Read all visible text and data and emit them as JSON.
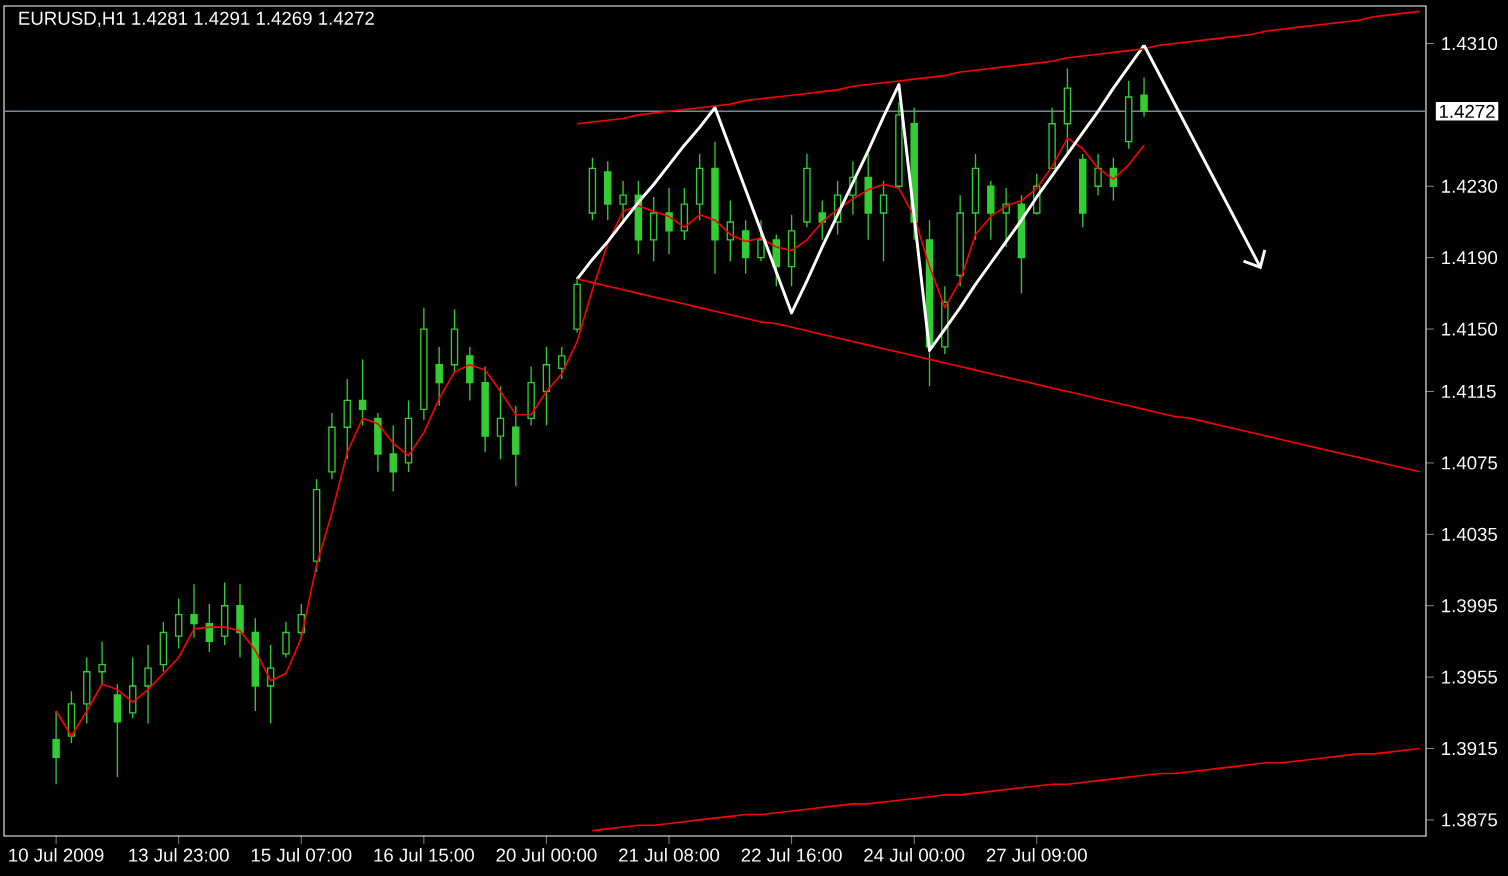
{
  "chart_data": {
    "type": "candlestick",
    "title": "EURUSD,H1  1.4281 1.4291 1.4269 1.4272",
    "color": "#32cd32",
    "categories": [
      "10 Jul 2009",
      null,
      null,
      null,
      null,
      null,
      null,
      null,
      "13 Jul 23:00",
      null,
      null,
      null,
      null,
      null,
      null,
      null,
      "15 Jul 07:00",
      null,
      null,
      null,
      null,
      null,
      null,
      null,
      "16 Jul 15:00",
      null,
      null,
      null,
      null,
      null,
      null,
      null,
      "20 Jul 00:00",
      null,
      null,
      null,
      null,
      null,
      null,
      null,
      "21 Jul 08:00",
      null,
      null,
      null,
      null,
      null,
      null,
      null,
      "22 Jul 16:00",
      null,
      null,
      null,
      null,
      null,
      null,
      null,
      "24 Jul 00:00",
      null,
      null,
      null,
      null,
      null,
      null,
      null,
      "27 Jul 09:00",
      null,
      null,
      null,
      null,
      null,
      null,
      null,
      null,
      null,
      null,
      null,
      null,
      null,
      null,
      null,
      null,
      null,
      null,
      null,
      null,
      null,
      null,
      null,
      null,
      null
    ],
    "ohlc": [
      [
        1.392,
        1.3936,
        1.3895,
        1.391
      ],
      [
        1.3922,
        1.3947,
        1.3918,
        1.394
      ],
      [
        1.394,
        1.3966,
        1.3929,
        1.3958
      ],
      [
        1.3958,
        1.3975,
        1.3951,
        1.3962
      ],
      [
        1.3945,
        1.3951,
        1.3899,
        1.393
      ],
      [
        1.3935,
        1.3966,
        1.3932,
        1.395
      ],
      [
        1.395,
        1.3973,
        1.3929,
        1.396
      ],
      [
        1.3962,
        1.3986,
        1.3958,
        1.398
      ],
      [
        1.3978,
        1.3999,
        1.3971,
        1.399
      ],
      [
        1.399,
        1.4007,
        1.3977,
        1.3985
      ],
      [
        1.3985,
        1.3996,
        1.3969,
        1.3975
      ],
      [
        1.3978,
        1.4008,
        1.3973,
        1.3995
      ],
      [
        1.3995,
        1.4007,
        1.3966,
        1.398
      ],
      [
        1.398,
        1.3988,
        1.3936,
        1.395
      ],
      [
        1.395,
        1.3973,
        1.3929,
        1.396
      ],
      [
        1.3968,
        1.3986,
        1.3966,
        1.398
      ],
      [
        1.398,
        1.3996,
        1.3977,
        1.399
      ],
      [
        1.402,
        1.4066,
        1.4014,
        1.406
      ],
      [
        1.407,
        1.4103,
        1.4066,
        1.4095
      ],
      [
        1.4095,
        1.4122,
        1.4077,
        1.411
      ],
      [
        1.411,
        1.4133,
        1.4096,
        1.4105
      ],
      [
        1.41,
        1.4103,
        1.407,
        1.408
      ],
      [
        1.408,
        1.4096,
        1.4059,
        1.407
      ],
      [
        1.4075,
        1.411,
        1.407,
        1.41
      ],
      [
        1.4105,
        1.4162,
        1.4099,
        1.415
      ],
      [
        1.413,
        1.414,
        1.4107,
        1.412
      ],
      [
        1.413,
        1.4161,
        1.4125,
        1.415
      ],
      [
        1.4135,
        1.414,
        1.411,
        1.412
      ],
      [
        1.412,
        1.4129,
        1.4081,
        1.409
      ],
      [
        1.409,
        1.4118,
        1.4077,
        1.41
      ],
      [
        1.4095,
        1.4107,
        1.4062,
        1.408
      ],
      [
        1.41,
        1.4129,
        1.4096,
        1.412
      ],
      [
        1.4115,
        1.414,
        1.4096,
        1.413
      ],
      [
        1.4128,
        1.414,
        1.4122,
        1.4135
      ],
      [
        1.415,
        1.4179,
        1.4148,
        1.4175
      ],
      [
        1.4215,
        1.4246,
        1.4211,
        1.424
      ],
      [
        1.4238,
        1.4244,
        1.4211,
        1.422
      ],
      [
        1.422,
        1.4233,
        1.4211,
        1.4225
      ],
      [
        1.4225,
        1.4233,
        1.4192,
        1.42
      ],
      [
        1.42,
        1.4224,
        1.4188,
        1.4215
      ],
      [
        1.4215,
        1.4229,
        1.4192,
        1.4205
      ],
      [
        1.4205,
        1.4229,
        1.42,
        1.422
      ],
      [
        1.422,
        1.4248,
        1.4211,
        1.424
      ],
      [
        1.424,
        1.4255,
        1.4181,
        1.42
      ],
      [
        1.42,
        1.4222,
        1.4188,
        1.421
      ],
      [
        1.4205,
        1.4211,
        1.4181,
        1.419
      ],
      [
        1.419,
        1.4211,
        1.4188,
        1.42
      ],
      [
        1.42,
        1.4203,
        1.4174,
        1.4185
      ],
      [
        1.4185,
        1.4214,
        1.4174,
        1.4205
      ],
      [
        1.421,
        1.4248,
        1.4207,
        1.424
      ],
      [
        1.4215,
        1.4222,
        1.42,
        1.421
      ],
      [
        1.421,
        1.4233,
        1.4203,
        1.4225
      ],
      [
        1.4225,
        1.4244,
        1.4214,
        1.4235
      ],
      [
        1.4235,
        1.4248,
        1.42,
        1.4215
      ],
      [
        1.4215,
        1.4233,
        1.4188,
        1.4225
      ],
      [
        1.423,
        1.4277,
        1.4229,
        1.427
      ],
      [
        1.4265,
        1.4274,
        1.42,
        1.421
      ],
      [
        1.42,
        1.4211,
        1.4118,
        1.414
      ],
      [
        1.414,
        1.4174,
        1.4136,
        1.4165
      ],
      [
        1.418,
        1.4225,
        1.4174,
        1.4215
      ],
      [
        1.4215,
        1.4248,
        1.42,
        1.424
      ],
      [
        1.423,
        1.4233,
        1.42,
        1.4215
      ],
      [
        1.4215,
        1.4229,
        1.4196,
        1.422
      ],
      [
        1.422,
        1.4225,
        1.417,
        1.419
      ],
      [
        1.4215,
        1.4237,
        1.4214,
        1.423
      ],
      [
        1.424,
        1.4274,
        1.424,
        1.4265
      ],
      [
        1.4265,
        1.4296,
        1.4248,
        1.4285
      ],
      [
        1.4245,
        1.4248,
        1.4207,
        1.4215
      ],
      [
        1.423,
        1.4248,
        1.4225,
        1.424
      ],
      [
        1.424,
        1.4246,
        1.4222,
        1.423
      ],
      [
        1.4255,
        1.4289,
        1.4251,
        1.428
      ],
      [
        1.4281,
        1.4291,
        1.4269,
        1.4272
      ],
      null,
      null,
      null,
      null,
      null,
      null,
      null,
      null,
      null,
      null,
      null,
      null,
      null,
      null,
      null,
      null,
      null,
      null
    ],
    "series": [
      {
        "type": "line",
        "color": "#ff0000",
        "values": [
          1.3936,
          1.3922,
          1.3936,
          1.3951,
          1.3948,
          1.3941,
          1.3948,
          1.3957,
          1.3966,
          1.3982,
          1.3983,
          1.3983,
          1.3981,
          1.397,
          1.3953,
          1.3957,
          1.3977,
          1.4018,
          1.4047,
          1.4081,
          1.41,
          1.4097,
          1.4086,
          1.4079,
          1.4092,
          1.4111,
          1.4126,
          1.413,
          1.4127,
          1.4115,
          1.4102,
          1.4102,
          1.4115,
          1.4125,
          1.4143,
          1.4172,
          1.4198,
          1.4216,
          1.4219,
          1.4216,
          1.4213,
          1.4207,
          1.4214,
          1.4211,
          1.4203,
          1.4199,
          1.4201,
          1.4196,
          1.4194,
          1.42,
          1.421,
          1.4217,
          1.4223,
          1.4228,
          1.4231,
          1.4229,
          1.4213,
          1.4185,
          1.4162,
          1.4177,
          1.4203,
          1.4213,
          1.4219,
          1.4222,
          1.4229,
          1.4241,
          1.4257,
          1.4251,
          1.424,
          1.4234,
          1.4242,
          1.4253,
          null,
          null,
          null,
          null,
          null,
          null,
          null,
          null,
          null,
          null,
          null,
          null,
          null,
          null,
          null,
          null,
          null,
          null
        ]
      },
      {
        "type": "line",
        "color": "#ffffff",
        "values": [
          null,
          null,
          null,
          null,
          null,
          null,
          null,
          null,
          null,
          null,
          null,
          null,
          null,
          null,
          null,
          null,
          null,
          null,
          null,
          null,
          null,
          null,
          null,
          null,
          null,
          null,
          null,
          null,
          null,
          null,
          null,
          null,
          null,
          null,
          1.4178,
          1.4189,
          1.4199,
          1.421,
          1.4221,
          1.4231,
          1.4242,
          1.4253,
          1.4263,
          1.4274,
          1.4251,
          1.4228,
          1.4205,
          1.4182,
          1.4159,
          1.4177,
          1.4196,
          1.4214,
          1.4232,
          1.425,
          1.4269,
          1.4287,
          1.4213,
          1.4138,
          1.415,
          1.4162,
          1.4175,
          1.4187,
          1.4199,
          1.4211,
          1.4224,
          1.4236,
          1.4248,
          1.426,
          1.4272,
          1.4285,
          1.4297,
          1.4309,
          null,
          null,
          null,
          null,
          null,
          null,
          null,
          null,
          null,
          null,
          null,
          null,
          null,
          null,
          null,
          null,
          null,
          null
        ]
      },
      {
        "type": "line",
        "color": "#ff0000",
        "values": [
          null,
          null,
          null,
          null,
          null,
          null,
          null,
          null,
          null,
          null,
          null,
          null,
          null,
          null,
          null,
          null,
          null,
          null,
          null,
          null,
          null,
          null,
          null,
          null,
          null,
          null,
          null,
          null,
          null,
          null,
          null,
          null,
          null,
          null,
          1.4265,
          1.4266,
          1.4267,
          1.4268,
          1.427,
          1.4271,
          1.4272,
          1.4273,
          1.4274,
          1.4275,
          1.4276,
          1.4278,
          1.4279,
          1.428,
          1.4281,
          1.4282,
          1.4283,
          1.4284,
          1.4286,
          1.4287,
          1.4288,
          1.4289,
          1.429,
          1.4291,
          1.4292,
          1.4294,
          1.4295,
          1.4296,
          1.4297,
          1.4298,
          1.4299,
          1.43,
          1.4302,
          1.4303,
          1.4304,
          1.4305,
          1.4306,
          1.4307,
          1.4309,
          1.431,
          1.4311,
          1.4312,
          1.4313,
          1.4314,
          1.4315,
          1.4317,
          1.4318,
          1.4319,
          1.432,
          1.4321,
          1.4322,
          1.4323,
          1.4325,
          1.4326,
          1.4327,
          1.4328
        ]
      },
      {
        "type": "line",
        "color": "#ff0000",
        "values": [
          null,
          null,
          null,
          null,
          null,
          null,
          null,
          null,
          null,
          null,
          null,
          null,
          null,
          null,
          null,
          null,
          null,
          null,
          null,
          null,
          null,
          null,
          null,
          null,
          null,
          null,
          null,
          null,
          null,
          null,
          null,
          null,
          null,
          null,
          1.4178,
          1.4176,
          1.4174,
          1.4172,
          1.417,
          1.4168,
          1.4166,
          1.4164,
          1.4162,
          1.416,
          1.4158,
          1.4156,
          1.4154,
          1.4153,
          1.4151,
          1.4149,
          1.4147,
          1.4145,
          1.4143,
          1.4141,
          1.4139,
          1.4137,
          1.4135,
          1.4133,
          1.4131,
          1.4129,
          1.4127,
          1.4125,
          1.4123,
          1.4121,
          1.4119,
          1.4117,
          1.4115,
          1.4113,
          1.4111,
          1.4109,
          1.4107,
          1.4105,
          1.4103,
          1.4101,
          1.41,
          1.4098,
          1.4096,
          1.4094,
          1.4092,
          1.409,
          1.4088,
          1.4086,
          1.4084,
          1.4082,
          1.408,
          1.4078,
          1.4076,
          1.4074,
          1.4072,
          1.407
        ]
      },
      {
        "type": "line",
        "color": "#ff0000",
        "values": [
          null,
          null,
          null,
          null,
          null,
          null,
          null,
          null,
          null,
          null,
          null,
          null,
          null,
          null,
          null,
          null,
          null,
          null,
          null,
          null,
          null,
          null,
          null,
          null,
          null,
          null,
          null,
          null,
          null,
          null,
          null,
          null,
          null,
          null,
          null,
          1.3869,
          1.387,
          1.3871,
          1.3872,
          1.3872,
          1.3873,
          1.3874,
          1.3875,
          1.3876,
          1.3877,
          1.3878,
          1.3878,
          1.3879,
          1.388,
          1.3881,
          1.3882,
          1.3883,
          1.3884,
          1.3884,
          1.3885,
          1.3886,
          1.3887,
          1.3888,
          1.3889,
          1.3889,
          1.389,
          1.3891,
          1.3892,
          1.3893,
          1.3894,
          1.3895,
          1.3895,
          1.3896,
          1.3897,
          1.3898,
          1.3899,
          1.39,
          1.3901,
          1.3901,
          1.3902,
          1.3903,
          1.3904,
          1.3905,
          1.3906,
          1.3907,
          1.3907,
          1.3908,
          1.3909,
          1.391,
          1.3911,
          1.3912,
          1.3912,
          1.3913,
          1.3914,
          1.3915
        ]
      }
    ],
    "ylim": [
      1.3866,
      1.4331
    ],
    "yticks": [
      {
        "value": 1.431,
        "label": "1.4310"
      },
      {
        "value": 1.423,
        "label": "1.4230"
      },
      {
        "value": 1.419,
        "label": "1.4190"
      },
      {
        "value": 1.415,
        "label": "1.4150"
      },
      {
        "value": 1.4115,
        "label": "1.4115"
      },
      {
        "value": 1.4075,
        "label": "1.4075"
      },
      {
        "value": 1.4035,
        "label": "1.4035"
      },
      {
        "value": 1.3995,
        "label": "1.3995"
      },
      {
        "value": 1.3955,
        "label": "1.3955"
      },
      {
        "value": 1.3915,
        "label": "1.3915"
      },
      {
        "value": 1.3875,
        "label": "1.3875"
      }
    ],
    "ref_lines": [
      {
        "axis": "y",
        "value": 1.4272,
        "label": "1.4272",
        "color": "#778899"
      }
    ]
  }
}
